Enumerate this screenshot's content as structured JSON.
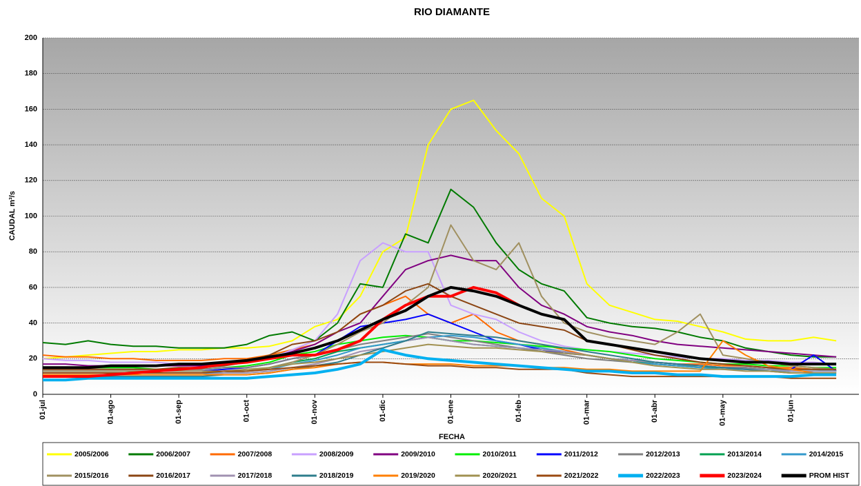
{
  "chart_data": {
    "type": "line",
    "title": "RIO DIAMANTE",
    "x_label": "FECHA",
    "y_label": "CAUDAL m³/s",
    "categories": [
      "01-jul",
      null,
      null,
      "01-ago",
      null,
      null,
      "01-sep",
      null,
      null,
      "01-oct",
      null,
      null,
      "01-nov",
      null,
      null,
      "01-dic",
      null,
      null,
      "01-ene",
      null,
      null,
      "01-feb",
      null,
      null,
      "01-mar",
      null,
      null,
      "01-abr",
      null,
      null,
      "01-may",
      null,
      null,
      "01-jun",
      null,
      null
    ],
    "ylim": [
      0,
      200
    ],
    "yticks": [
      0,
      20,
      40,
      60,
      80,
      100,
      120,
      140,
      160,
      180,
      200
    ],
    "grid": true,
    "legend": "bottom",
    "series": [
      {
        "name": "2005/2006",
        "color": "#ffff00",
        "width": 2,
        "values": [
          20,
          21,
          22,
          23,
          24,
          24,
          25,
          25,
          26,
          26,
          27,
          30,
          38,
          42,
          55,
          80,
          88,
          140,
          160,
          165,
          148,
          135,
          110,
          100,
          62,
          50,
          46,
          42,
          41,
          38,
          35,
          31,
          30,
          30,
          32,
          30
        ]
      },
      {
        "name": "2006/2007",
        "color": "#007a00",
        "width": 2,
        "values": [
          29,
          28,
          30,
          28,
          27,
          27,
          26,
          26,
          26,
          28,
          33,
          35,
          30,
          40,
          62,
          60,
          90,
          85,
          115,
          105,
          85,
          70,
          62,
          58,
          43,
          40,
          38,
          37,
          35,
          32,
          30,
          26,
          24,
          22,
          21,
          21
        ]
      },
      {
        "name": "2007/2008",
        "color": "#ff6a00",
        "width": 2,
        "values": [
          22,
          21,
          21,
          20,
          20,
          19,
          19,
          19,
          20,
          20,
          22,
          25,
          28,
          35,
          45,
          50,
          55,
          45,
          40,
          45,
          35,
          30,
          28,
          25,
          22,
          20,
          19,
          18,
          17,
          17,
          16,
          16,
          15,
          15,
          14,
          14
        ]
      },
      {
        "name": "2008/2009",
        "color": "#c8a0ff",
        "width": 2,
        "values": [
          20,
          19,
          19,
          18,
          18,
          18,
          17,
          17,
          18,
          18,
          20,
          25,
          30,
          45,
          75,
          85,
          80,
          80,
          50,
          45,
          42,
          35,
          30,
          27,
          25,
          24,
          23,
          22,
          21,
          20,
          20,
          19,
          19,
          18,
          18,
          17
        ]
      },
      {
        "name": "2009/2010",
        "color": "#800080",
        "width": 2,
        "values": [
          17,
          17,
          16,
          16,
          16,
          16,
          16,
          16,
          17,
          18,
          20,
          24,
          28,
          35,
          40,
          55,
          70,
          75,
          78,
          75,
          75,
          60,
          50,
          45,
          38,
          35,
          33,
          30,
          28,
          27,
          26,
          25,
          24,
          23,
          22,
          21
        ]
      },
      {
        "name": "2010/2011",
        "color": "#00ee00",
        "width": 2,
        "values": [
          15,
          15,
          15,
          15,
          15,
          14,
          14,
          14,
          15,
          16,
          18,
          22,
          24,
          28,
          30,
          32,
          33,
          32,
          30,
          30,
          29,
          28,
          27,
          26,
          25,
          24,
          22,
          20,
          19,
          18,
          17,
          17,
          16,
          16,
          15,
          15
        ]
      },
      {
        "name": "2011/2012",
        "color": "#0000ff",
        "width": 2,
        "values": [
          13,
          13,
          13,
          13,
          13,
          13,
          13,
          13,
          14,
          15,
          17,
          20,
          22,
          30,
          38,
          40,
          42,
          45,
          40,
          35,
          30,
          28,
          25,
          23,
          22,
          20,
          19,
          18,
          17,
          16,
          15,
          15,
          14,
          14,
          22,
          13
        ]
      },
      {
        "name": "2012/2013",
        "color": "#808080",
        "width": 2,
        "values": [
          14,
          14,
          14,
          14,
          14,
          14,
          14,
          14,
          15,
          15,
          17,
          20,
          22,
          25,
          28,
          30,
          32,
          34,
          32,
          30,
          28,
          26,
          24,
          22,
          20,
          19,
          18,
          17,
          16,
          16,
          15,
          15,
          14,
          14,
          14,
          13
        ]
      },
      {
        "name": "2013/2014",
        "color": "#00a050",
        "width": 2,
        "values": [
          12,
          12,
          12,
          12,
          12,
          12,
          12,
          12,
          13,
          13,
          15,
          18,
          20,
          24,
          26,
          28,
          30,
          32,
          30,
          28,
          27,
          26,
          25,
          24,
          22,
          20,
          19,
          17,
          16,
          15,
          15,
          14,
          14,
          13,
          13,
          13
        ]
      },
      {
        "name": "2014/2015",
        "color": "#3399cc",
        "width": 2,
        "values": [
          12,
          12,
          12,
          12,
          12,
          12,
          12,
          12,
          12,
          13,
          14,
          17,
          19,
          22,
          26,
          28,
          30,
          32,
          33,
          32,
          30,
          28,
          26,
          24,
          22,
          20,
          18,
          17,
          16,
          15,
          14,
          14,
          13,
          13,
          13,
          13
        ]
      },
      {
        "name": "2015/2016",
        "color": "#a09060",
        "width": 2,
        "values": [
          11,
          11,
          11,
          11,
          11,
          11,
          11,
          11,
          12,
          13,
          15,
          18,
          22,
          28,
          35,
          40,
          50,
          60,
          95,
          75,
          70,
          85,
          55,
          40,
          35,
          32,
          30,
          28,
          35,
          45,
          22,
          20,
          18,
          16,
          15,
          14
        ]
      },
      {
        "name": "2016/2017",
        "color": "#8b4513",
        "width": 2,
        "values": [
          14,
          14,
          14,
          14,
          14,
          14,
          15,
          15,
          16,
          18,
          22,
          28,
          30,
          35,
          45,
          50,
          58,
          62,
          55,
          50,
          45,
          40,
          38,
          36,
          30,
          28,
          25,
          22,
          20,
          18,
          17,
          16,
          15,
          14,
          14,
          14
        ]
      },
      {
        "name": "2017/2018",
        "color": "#a090b0",
        "width": 2,
        "values": [
          11,
          11,
          11,
          11,
          11,
          11,
          11,
          11,
          12,
          12,
          13,
          15,
          17,
          20,
          24,
          26,
          30,
          32,
          30,
          28,
          27,
          26,
          25,
          24,
          22,
          20,
          19,
          18,
          17,
          16,
          15,
          14,
          14,
          13,
          13,
          13
        ]
      },
      {
        "name": "2018/2019",
        "color": "#2e7d8c",
        "width": 2,
        "values": [
          10,
          10,
          10,
          10,
          10,
          10,
          10,
          10,
          11,
          11,
          12,
          14,
          16,
          18,
          22,
          26,
          30,
          35,
          34,
          33,
          32,
          30,
          28,
          26,
          24,
          22,
          20,
          18,
          17,
          16,
          15,
          14,
          13,
          12,
          12,
          12
        ]
      },
      {
        "name": "2019/2020",
        "color": "#ff7f00",
        "width": 2,
        "values": [
          11,
          11,
          11,
          11,
          11,
          11,
          11,
          11,
          11,
          11,
          12,
          14,
          15,
          17,
          18,
          18,
          17,
          17,
          17,
          16,
          16,
          16,
          15,
          15,
          14,
          14,
          13,
          13,
          13,
          13,
          30,
          22,
          16,
          14,
          12,
          12
        ]
      },
      {
        "name": "2020/2021",
        "color": "#a09050",
        "width": 2,
        "values": [
          13,
          13,
          13,
          13,
          13,
          13,
          13,
          13,
          13,
          14,
          15,
          17,
          18,
          20,
          22,
          24,
          26,
          28,
          27,
          26,
          26,
          25,
          24,
          23,
          22,
          20,
          18,
          16,
          15,
          14,
          14,
          13,
          13,
          12,
          12,
          12
        ]
      },
      {
        "name": "2021/2022",
        "color": "#9a4a10",
        "width": 2,
        "values": [
          12,
          12,
          12,
          12,
          12,
          12,
          12,
          12,
          13,
          13,
          14,
          15,
          16,
          17,
          18,
          18,
          17,
          16,
          16,
          15,
          15,
          14,
          14,
          14,
          12,
          11,
          10,
          10,
          10,
          10,
          10,
          10,
          10,
          9,
          9,
          9
        ]
      },
      {
        "name": "2022/2023",
        "color": "#00b0f0",
        "width": 4,
        "values": [
          8,
          8,
          9,
          9,
          9,
          9,
          9,
          9,
          9,
          9,
          10,
          11,
          12,
          14,
          17,
          25,
          22,
          20,
          19,
          18,
          17,
          16,
          15,
          14,
          13,
          13,
          12,
          12,
          11,
          11,
          10,
          10,
          10,
          10,
          11,
          11
        ]
      },
      {
        "name": "2023/2024",
        "color": "#ff0000",
        "width": 4,
        "values": [
          10,
          10,
          10,
          11,
          12,
          13,
          14,
          15,
          17,
          18,
          20,
          22,
          22,
          25,
          30,
          42,
          50,
          55,
          55,
          60,
          57,
          50,
          null,
          null,
          null,
          null,
          null,
          null,
          null,
          null,
          null,
          null,
          null,
          null,
          null,
          null
        ]
      },
      {
        "name": "PROM HIST",
        "color": "#000000",
        "width": 4,
        "values": [
          15,
          15,
          15,
          16,
          16,
          16,
          17,
          17,
          18,
          19,
          21,
          23,
          26,
          30,
          36,
          42,
          47,
          55,
          60,
          58,
          55,
          50,
          45,
          42,
          30,
          28,
          26,
          24,
          22,
          20,
          19,
          18,
          18,
          17,
          17,
          17
        ]
      }
    ]
  }
}
